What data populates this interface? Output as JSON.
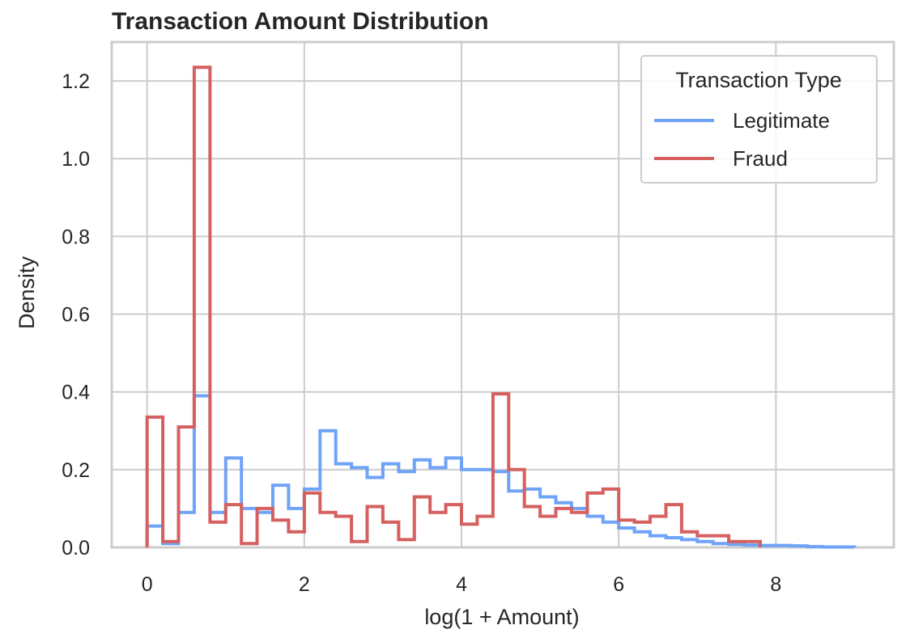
{
  "chart_data": {
    "type": "histogram-step",
    "title": "Transaction Amount Distribution",
    "xlabel": "log(1 + Amount)",
    "ylabel": "Density",
    "xlim": [
      -0.45,
      9.5
    ],
    "ylim": [
      0,
      1.3
    ],
    "xticks": [
      0,
      2,
      4,
      6,
      8
    ],
    "xtick_labels": [
      "0",
      "2",
      "4",
      "6",
      "8"
    ],
    "yticks": [
      0.0,
      0.2,
      0.4,
      0.6,
      0.8,
      1.0,
      1.2
    ],
    "ytick_labels": [
      "0.0",
      "0.2",
      "0.4",
      "0.6",
      "0.8",
      "1.0",
      "1.2"
    ],
    "grid": true,
    "legend": {
      "title": "Transaction Type",
      "placement": "top-right",
      "entries": [
        "Legitimate",
        "Fraud"
      ]
    },
    "series": [
      {
        "name": "Legitimate",
        "color": "#6fa3f7",
        "bin_edges": [
          0,
          0.2,
          0.4,
          0.6,
          0.8,
          1.0,
          1.2,
          1.4,
          1.6,
          1.8,
          2.0,
          2.2,
          2.4,
          2.6,
          2.8,
          3.0,
          3.2,
          3.4,
          3.6,
          3.8,
          4.0,
          4.2,
          4.4,
          4.6,
          4.8,
          5.0,
          5.2,
          5.4,
          5.6,
          5.8,
          6.0,
          6.2,
          6.4,
          6.6,
          6.8,
          7.0,
          7.2,
          7.4,
          7.6,
          7.8,
          8.0,
          8.2,
          8.4,
          8.6,
          8.8,
          9.0
        ],
        "values": [
          0.055,
          0.01,
          0.09,
          0.39,
          0.09,
          0.23,
          0.1,
          0.09,
          0.16,
          0.1,
          0.15,
          0.3,
          0.215,
          0.205,
          0.18,
          0.215,
          0.195,
          0.225,
          0.205,
          0.23,
          0.2,
          0.2,
          0.195,
          0.145,
          0.15,
          0.13,
          0.115,
          0.1,
          0.08,
          0.065,
          0.05,
          0.04,
          0.03,
          0.025,
          0.02,
          0.015,
          0.01,
          0.008,
          0.006,
          0.005,
          0.005,
          0.004,
          0.002,
          0.001,
          0.001
        ]
      },
      {
        "name": "Fraud",
        "color": "#d65f5f",
        "bin_edges": [
          0,
          0.2,
          0.4,
          0.6,
          0.8,
          1.0,
          1.2,
          1.4,
          1.6,
          1.8,
          2.0,
          2.2,
          2.4,
          2.6,
          2.8,
          3.0,
          3.2,
          3.4,
          3.6,
          3.8,
          4.0,
          4.2,
          4.4,
          4.6,
          4.8,
          5.0,
          5.2,
          5.4,
          5.6,
          5.8,
          6.0,
          6.2,
          6.4,
          6.6,
          6.8,
          7.0,
          7.2,
          7.4,
          7.6,
          7.8
        ],
        "values": [
          0.335,
          0.015,
          0.31,
          1.235,
          0.065,
          0.11,
          0.01,
          0.1,
          0.07,
          0.04,
          0.14,
          0.09,
          0.08,
          0.015,
          0.105,
          0.065,
          0.02,
          0.13,
          0.09,
          0.11,
          0.06,
          0.08,
          0.395,
          0.2,
          0.105,
          0.08,
          0.1,
          0.09,
          0.14,
          0.15,
          0.07,
          0.065,
          0.08,
          0.11,
          0.04,
          0.03,
          0.03,
          0.015,
          0.015
        ]
      }
    ]
  }
}
